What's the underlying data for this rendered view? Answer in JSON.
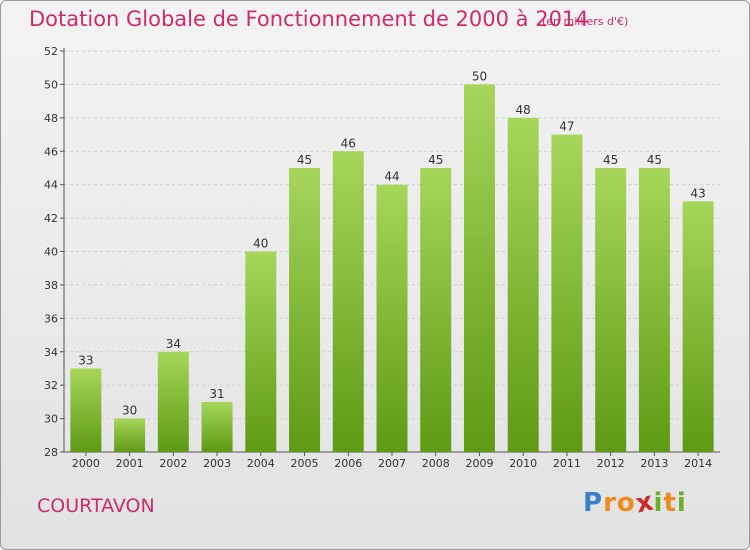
{
  "chart_data": {
    "type": "bar",
    "title": "Dotation Globale de Fonctionnement de 2000 à 2014",
    "subtitle": "(en milliers d'€)",
    "categories": [
      "2000",
      "2001",
      "2002",
      "2003",
      "2004",
      "2005",
      "2006",
      "2007",
      "2008",
      "2009",
      "2010",
      "2011",
      "2012",
      "2013",
      "2014"
    ],
    "values": [
      33,
      30,
      34,
      31,
      40,
      45,
      46,
      44,
      45,
      50,
      48,
      47,
      45,
      45,
      43
    ],
    "ylim": [
      28,
      52
    ],
    "yticks": [
      28,
      30,
      32,
      34,
      36,
      38,
      40,
      42,
      44,
      46,
      48,
      50,
      52
    ],
    "grid": true,
    "bar_color": "#7cba2b",
    "bar_color_light": "#a6d65a",
    "bar_color_dark": "#5e9a14",
    "label_color": "#333333",
    "title_color": "#cc2b6e"
  },
  "footer": {
    "location": "COURTAVON",
    "brand": {
      "letters": [
        {
          "char": "P",
          "color": "#3a7fcc"
        },
        {
          "char": "r",
          "color": "#f08a1c"
        },
        {
          "char": "o",
          "color": "#f08a1c"
        },
        {
          "char": "x",
          "color": "#cc2b2b"
        },
        {
          "char": "i",
          "color": "#6aad2a"
        },
        {
          "char": "t",
          "color": "#f08a1c"
        },
        {
          "char": "i",
          "color": "#6aad2a"
        }
      ]
    }
  }
}
